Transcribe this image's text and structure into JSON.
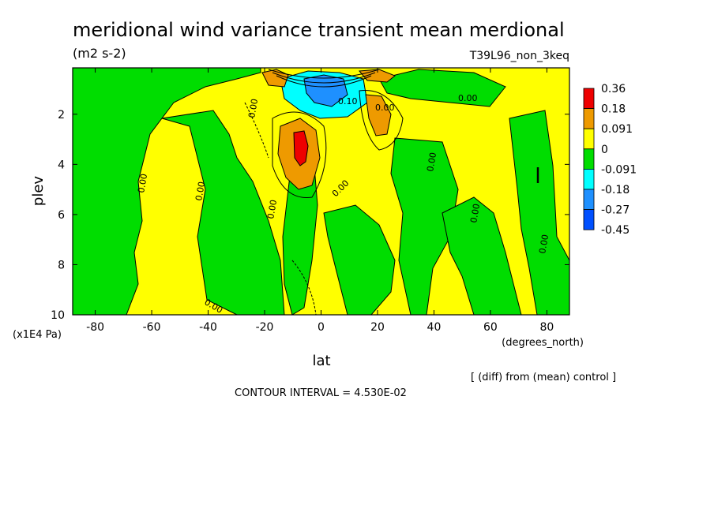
{
  "chart_data": {
    "type": "heatmap",
    "title": "meridional wind variance transient mean merdional",
    "units": "(m2 s-2)",
    "experiment": "T39L96_non_3keq",
    "xlabel": "lat",
    "ylabel": "plev",
    "x_unit": "(degrees_north)",
    "y_unit": "(x1E4 Pa)",
    "xlim": [
      -88,
      88
    ],
    "ylim": [
      10,
      0.15
    ],
    "x_ticks": [
      -80,
      -60,
      -40,
      -20,
      0,
      20,
      40,
      60,
      80
    ],
    "x_tick_labels": [
      "-80",
      "-60",
      "-40",
      "-20",
      "0",
      "20",
      "40",
      "60",
      "80"
    ],
    "y_ticks": [
      2,
      4,
      6,
      8,
      10
    ],
    "y_tick_labels": [
      "2",
      "4",
      "6",
      "8",
      "10"
    ],
    "colorbar": {
      "labels": [
        "0.36",
        "0.18",
        "0.091",
        "0",
        "-0.091",
        "-0.18",
        "-0.27",
        "-0.45"
      ],
      "colors": [
        "#ee0000",
        "#ee9a00",
        "#ffff00",
        "#00dd00",
        "#00ffff",
        "#1e90ff",
        "#0050ff"
      ]
    },
    "contour_labels": [
      "0.00",
      "0.00",
      "0.00",
      "0.00",
      "0.00",
      "0.00",
      "0.00",
      "0.00",
      "0.00",
      "0.00",
      "0.10",
      "0.00"
    ],
    "footer_right": "[ (diff) from (mean) control ]",
    "footer_center": "CONTOUR INTERVAL = 4.530E-02"
  }
}
